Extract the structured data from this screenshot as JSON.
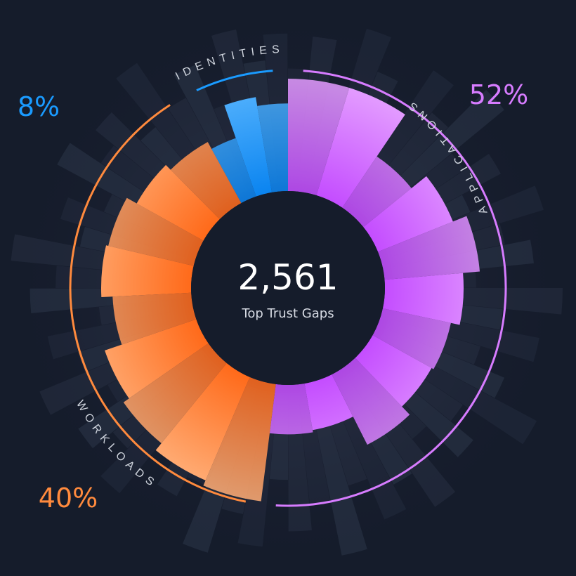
{
  "chart_data": {
    "type": "radial-bar",
    "center": {
      "value": "2,561",
      "label": "Top Trust Gaps"
    },
    "segments": [
      {
        "name": "APPLICATIONS",
        "percent_label": "52%",
        "percent": 52,
        "color": "#d77cff",
        "color_light": "#e6a3ff",
        "color_dark": "#c44dff",
        "bar_values": [
          1.0,
          1.0,
          0.55,
          0.72,
          0.85,
          0.7,
          0.62,
          0.6,
          0.7,
          0.42,
          0.44
        ]
      },
      {
        "name": "WORKLOADS",
        "percent_label": "40%",
        "percent": 40,
        "color": "#ff8a3d",
        "color_light": "#ffb07a",
        "color_dark": "#ff6a1a",
        "bar_values": [
          1.05,
          1.0,
          0.92,
          0.86,
          0.7,
          0.8,
          0.78,
          0.68,
          0.62
        ]
      },
      {
        "name": "IDENTITIES",
        "percent_label": "8%",
        "percent": 8,
        "color": "#1a9bff",
        "color_light": "#5db8ff",
        "color_dark": "#0a84f0",
        "bar_values": [
          0.55,
          0.86,
          0.78
        ]
      }
    ],
    "background_bars": [
      0.62,
      0.8,
      0.55,
      0.9,
      0.7,
      0.48,
      0.85,
      0.66,
      0.95,
      0.58,
      0.74,
      0.5,
      0.88,
      0.63,
      0.77,
      0.45,
      0.92,
      0.6,
      0.82,
      0.52,
      0.7,
      0.96,
      0.57,
      0.73,
      0.49,
      0.86,
      0.64,
      0.79,
      0.55,
      0.91,
      0.61,
      0.75,
      0.47,
      0.84,
      0.68,
      0.93,
      0.59,
      0.71,
      0.5,
      0.87,
      0.66,
      0.8,
      0.54,
      0.89,
      0.62,
      0.76,
      0.46,
      0.83,
      0.69,
      0.94,
      0.58,
      0.72,
      0.51,
      0.85,
      0.65,
      0.78,
      0.56,
      0.9,
      0.6,
      0.74,
      0.48,
      0.86,
      0.67,
      0.81
    ],
    "background_color": "#151c2b"
  }
}
